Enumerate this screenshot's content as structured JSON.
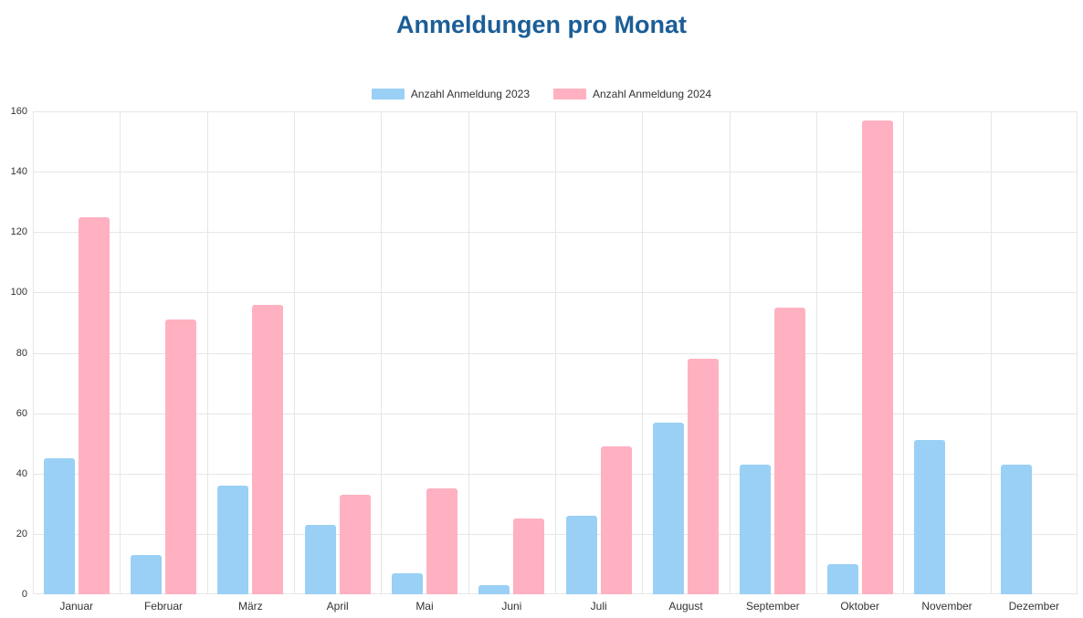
{
  "colors": {
    "title": "#1b5e97",
    "grid": "#e6e6e6",
    "axis_text": "#333333"
  },
  "chart_data": {
    "type": "bar",
    "title": "Anmeldungen pro Monat",
    "categories": [
      "Januar",
      "Februar",
      "März",
      "April",
      "Mai",
      "Juni",
      "Juli",
      "August",
      "September",
      "Oktober",
      "November",
      "Dezember"
    ],
    "series": [
      {
        "name": "Anzahl Anmeldung 2023",
        "color": "#9ad0f5",
        "values": [
          45,
          13,
          36,
          23,
          7,
          3,
          26,
          57,
          43,
          10,
          51,
          43
        ]
      },
      {
        "name": "Anzahl Anmeldung 2024",
        "color": "#ffb1c1",
        "values": [
          125,
          91,
          96,
          33,
          35,
          25,
          49,
          78,
          95,
          157,
          null,
          null
        ]
      }
    ],
    "xlabel": "",
    "ylabel": "",
    "ylim": [
      0,
      160
    ],
    "ytick_step": 20,
    "grid": "on",
    "legend_position": "top"
  }
}
